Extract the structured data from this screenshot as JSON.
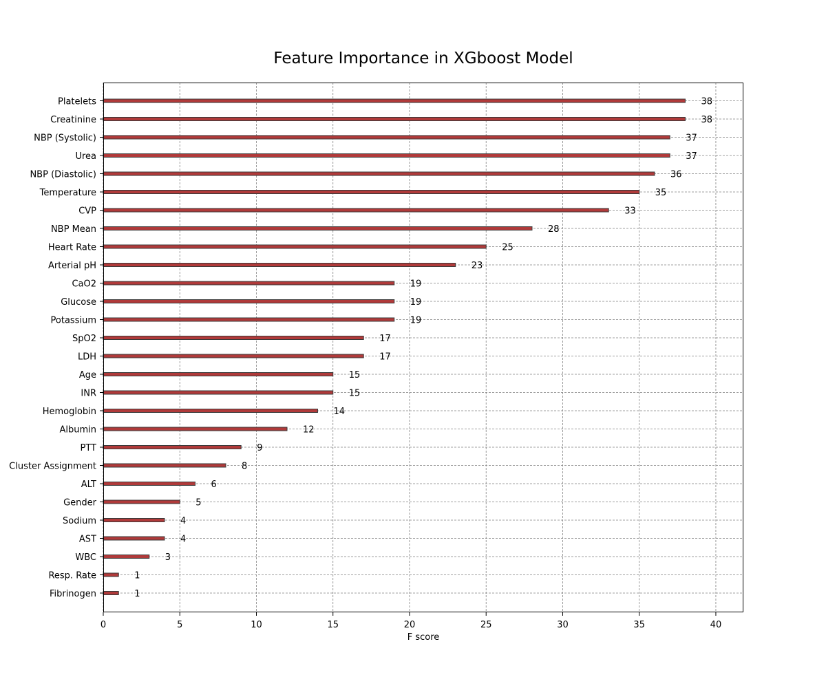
{
  "chart_data": {
    "type": "bar",
    "orientation": "horizontal",
    "title": "Feature Importance in XGboost Model",
    "xlabel": "F score",
    "ylabel": "",
    "xlim": [
      0,
      41.8
    ],
    "xticks": [
      0,
      5,
      10,
      15,
      20,
      25,
      30,
      35,
      40
    ],
    "grid": true,
    "bar_color": "#b03a3a",
    "bar_edge_color": "#3a3a3a",
    "categories": [
      "Platelets",
      "Creatinine",
      "NBP (Systolic)",
      "Urea",
      "NBP (Diastolic)",
      "Temperature",
      "CVP",
      "NBP Mean",
      "Heart Rate",
      "Arterial pH",
      "CaO2",
      "Glucose",
      "Potassium",
      "SpO2",
      "LDH",
      "Age",
      "INR",
      "Hemoglobin",
      "Albumin",
      "PTT",
      "Cluster Assignment",
      "ALT",
      "Gender",
      "Sodium",
      "AST",
      "WBC",
      "Resp. Rate",
      "Fibrinogen"
    ],
    "values": [
      38,
      38,
      37,
      37,
      36,
      35,
      33,
      28,
      25,
      23,
      19,
      19,
      19,
      17,
      17,
      15,
      15,
      14,
      12,
      9,
      8,
      6,
      5,
      4,
      4,
      3,
      1,
      1
    ]
  }
}
